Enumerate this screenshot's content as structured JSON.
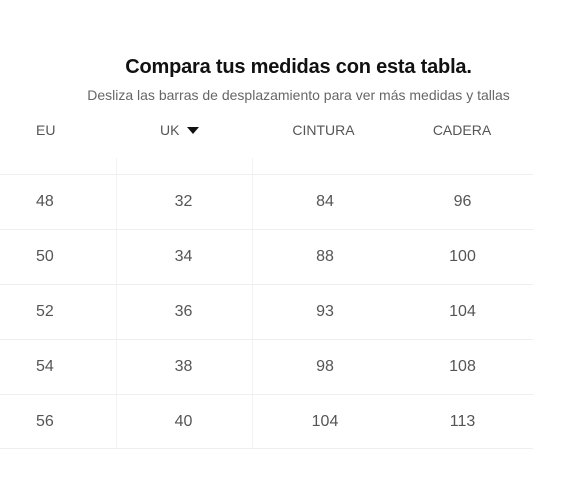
{
  "title": "Compara tus medidas con esta tabla.",
  "subtitle": "Desliza las barras de desplazamiento para ver más medidas y tallas",
  "columns": {
    "eu": "EU",
    "uk": "UK",
    "cintura": "CINTURA",
    "cadera": "CADERA"
  },
  "sort_indicator_icon": "caret-down-icon",
  "rows": [
    {
      "eu": "48",
      "uk": "32",
      "cintura": "84",
      "cadera": "96"
    },
    {
      "eu": "50",
      "uk": "34",
      "cintura": "88",
      "cadera": "100"
    },
    {
      "eu": "52",
      "uk": "36",
      "cintura": "93",
      "cadera": "104"
    },
    {
      "eu": "54",
      "uk": "38",
      "cintura": "98",
      "cadera": "108"
    },
    {
      "eu": "56",
      "uk": "40",
      "cintura": "104",
      "cadera": "113"
    }
  ],
  "colors": {
    "title": "#111111",
    "subtitle": "#666666",
    "cell_text": "#555555",
    "divider": "#eeeeee"
  }
}
